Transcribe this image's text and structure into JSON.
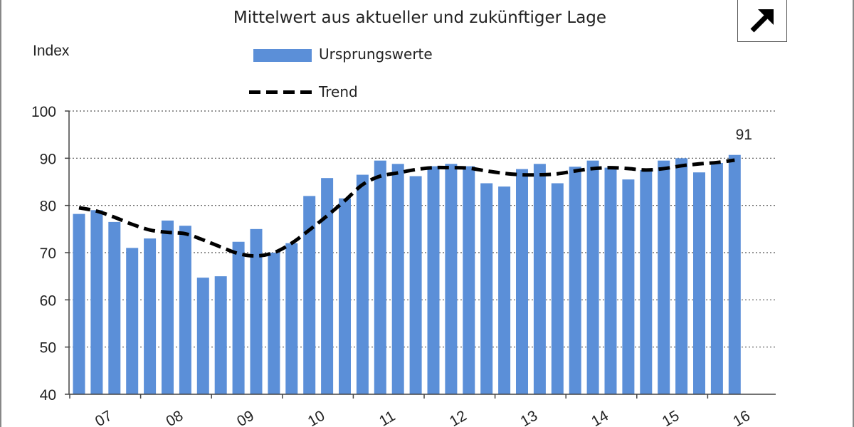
{
  "chart_data": {
    "type": "bar",
    "subtitle": "Mittelwert aus aktueller und zukünftiger Lage",
    "ylabel": "Index",
    "ylim": [
      40,
      100
    ],
    "yticks": [
      40,
      50,
      60,
      70,
      80,
      90,
      100
    ],
    "x_tick_labels": [
      "07",
      "08",
      "09",
      "10",
      "11",
      "12",
      "13",
      "14",
      "15",
      "16"
    ],
    "grid": true,
    "legend_position": "top-center",
    "series": [
      {
        "name": "Ursprungswerte",
        "type": "bar",
        "color": "#5b8fd8",
        "values": [
          78.2,
          79.0,
          76.5,
          71.0,
          73.0,
          76.8,
          75.7,
          64.7,
          65.0,
          72.3,
          75.0,
          70.0,
          72.0,
          82.0,
          85.8,
          81.5,
          86.5,
          89.5,
          88.8,
          86.2,
          88.3,
          88.8,
          88.3,
          84.7,
          84.0,
          87.7,
          88.8,
          84.7,
          88.2,
          89.5,
          88.0,
          85.5,
          87.5,
          89.5,
          90.0,
          87.0,
          89.0,
          90.7
        ]
      },
      {
        "name": "Trend",
        "type": "line",
        "style": "dashed",
        "color": "#000000",
        "values": [
          79.5,
          78.8,
          77.5,
          76.0,
          74.8,
          74.3,
          74.0,
          72.7,
          71.2,
          69.8,
          69.3,
          70.0,
          72.0,
          74.8,
          77.8,
          81.0,
          84.4,
          86.2,
          86.9,
          87.6,
          88.0,
          88.0,
          87.9,
          87.3,
          86.8,
          86.5,
          86.5,
          86.7,
          87.3,
          87.8,
          88.0,
          87.8,
          87.5,
          87.8,
          88.4,
          88.8,
          89.1,
          89.6
        ]
      }
    ],
    "annotations": [
      {
        "text": "91",
        "at_index": 37
      }
    ]
  },
  "colors": {
    "bar": "#5b8fd8",
    "trend": "#000000",
    "grid": "#555555"
  },
  "arrow_icon": "arrow-up-right-icon"
}
